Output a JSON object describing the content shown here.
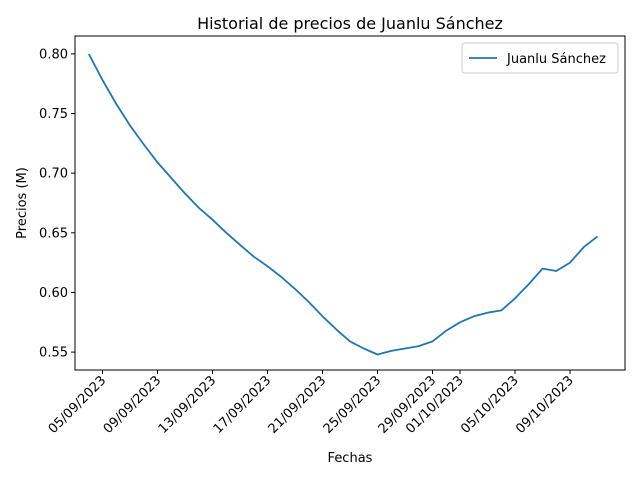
{
  "chart_data": {
    "type": "line",
    "title": "Historial de precios de Juanlu Sánchez",
    "xlabel": "Fechas",
    "ylabel": "Precios (M)",
    "x_tick_labels": [
      "05/09/2023",
      "09/09/2023",
      "13/09/2023",
      "17/09/2023",
      "21/09/2023",
      "25/09/2023",
      "29/09/2023",
      "01/10/2023",
      "05/10/2023",
      "09/10/2023"
    ],
    "x_tick_dates": [
      "2023-09-05",
      "2023-09-09",
      "2023-09-13",
      "2023-09-17",
      "2023-09-21",
      "2023-09-25",
      "2023-09-29",
      "2023-10-01",
      "2023-10-05",
      "2023-10-09"
    ],
    "y_ticks": [
      0.55,
      0.6,
      0.65,
      0.7,
      0.75,
      0.8
    ],
    "y_tick_labels": [
      "0.55",
      "0.60",
      "0.65",
      "0.70",
      "0.75",
      "0.80"
    ],
    "ylim": [
      0.535,
      0.815
    ],
    "xlim": [
      "2023-09-03",
      "2023-10-13"
    ],
    "legend": {
      "position": "top-right"
    },
    "grid": false,
    "series": [
      {
        "name": "Juanlu Sánchez",
        "color": "#1f77b4",
        "x": [
          "2023-09-04",
          "2023-09-05",
          "2023-09-06",
          "2023-09-07",
          "2023-09-08",
          "2023-09-09",
          "2023-09-10",
          "2023-09-11",
          "2023-09-12",
          "2023-09-13",
          "2023-09-14",
          "2023-09-15",
          "2023-09-16",
          "2023-09-17",
          "2023-09-18",
          "2023-09-19",
          "2023-09-20",
          "2023-09-21",
          "2023-09-22",
          "2023-09-23",
          "2023-09-24",
          "2023-09-25",
          "2023-09-26",
          "2023-09-27",
          "2023-09-28",
          "2023-09-29",
          "2023-09-30",
          "2023-10-01",
          "2023-10-02",
          "2023-10-03",
          "2023-10-04",
          "2023-10-05",
          "2023-10-06",
          "2023-10-07",
          "2023-10-08",
          "2023-10-09",
          "2023-10-10",
          "2023-10-11"
        ],
        "y": [
          0.8,
          0.778,
          0.758,
          0.74,
          0.724,
          0.709,
          0.696,
          0.683,
          0.671,
          0.661,
          0.65,
          0.64,
          0.63,
          0.622,
          0.613,
          0.603,
          0.592,
          0.58,
          0.569,
          0.559,
          0.553,
          0.548,
          0.551,
          0.553,
          0.555,
          0.559,
          0.568,
          0.575,
          0.58,
          0.583,
          0.585,
          0.595,
          0.607,
          0.62,
          0.618,
          0.625,
          0.638,
          0.647
        ]
      }
    ]
  }
}
